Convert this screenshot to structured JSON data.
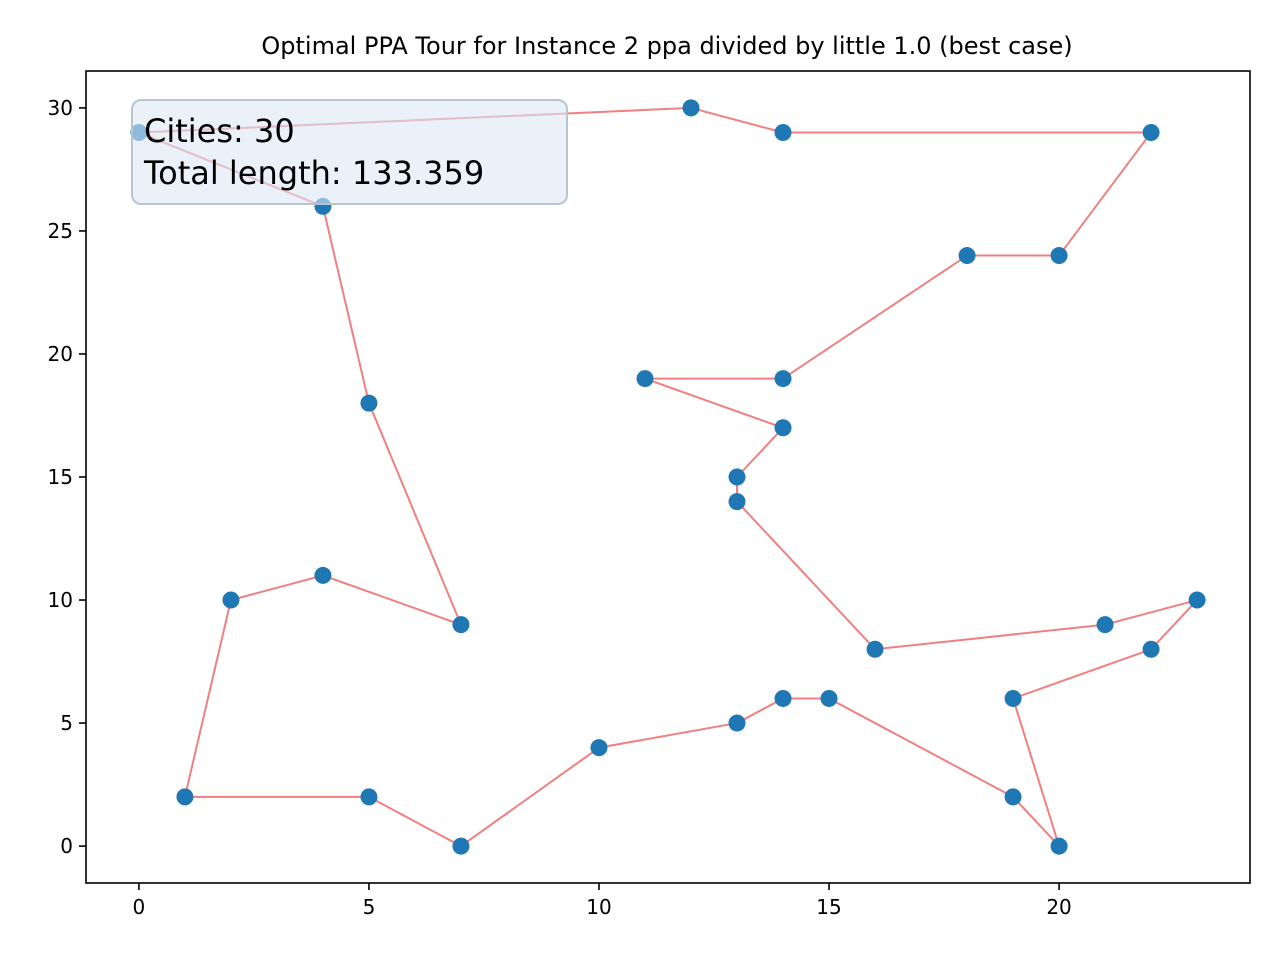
{
  "chart_data": {
    "type": "scatter",
    "title": "Optimal PPA Tour for Instance 2 ppa divided by little 1.0 (best case)",
    "xlabel": "",
    "ylabel": "",
    "xlim": [
      -1.15,
      24.15
    ],
    "ylim": [
      -1.5,
      31.5
    ],
    "xticks": [
      0,
      5,
      10,
      15,
      20
    ],
    "yticks": [
      0,
      5,
      10,
      15,
      20,
      25,
      30
    ],
    "grid": false,
    "point_color": "#1f77b4",
    "line_color": "#f08080",
    "info_box": {
      "lines": [
        "Cities: 30",
        "Total length: 133.359"
      ],
      "placement": "top-left"
    },
    "tour": [
      [
        0,
        29
      ],
      [
        12,
        30
      ],
      [
        14,
        29
      ],
      [
        22,
        29
      ],
      [
        20,
        24
      ],
      [
        18,
        24
      ],
      [
        14,
        19
      ],
      [
        11,
        19
      ],
      [
        14,
        17
      ],
      [
        13,
        15
      ],
      [
        13,
        14
      ],
      [
        16,
        8
      ],
      [
        21,
        9
      ],
      [
        23,
        10
      ],
      [
        22,
        8
      ],
      [
        19,
        6
      ],
      [
        20,
        0
      ],
      [
        19,
        2
      ],
      [
        15,
        6
      ],
      [
        14,
        6
      ],
      [
        13,
        5
      ],
      [
        10,
        4
      ],
      [
        7,
        0
      ],
      [
        5,
        2
      ],
      [
        1,
        2
      ],
      [
        2,
        10
      ],
      [
        4,
        11
      ],
      [
        7,
        9
      ],
      [
        5,
        18
      ],
      [
        4,
        26
      ],
      [
        0,
        29
      ]
    ]
  }
}
